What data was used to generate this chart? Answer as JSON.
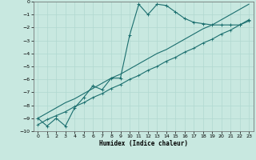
{
  "xlabel": "Humidex (Indice chaleur)",
  "ylabel": "",
  "bg_color": "#c8e8e0",
  "grid_color": "#b0d8d0",
  "line_color": "#1a6e6e",
  "xlim": [
    -0.5,
    23.5
  ],
  "ylim": [
    -10,
    0
  ],
  "xticks": [
    0,
    1,
    2,
    3,
    4,
    5,
    6,
    7,
    8,
    9,
    10,
    11,
    12,
    13,
    14,
    15,
    16,
    17,
    18,
    19,
    20,
    21,
    22,
    23
  ],
  "yticks": [
    0,
    -1,
    -2,
    -3,
    -4,
    -5,
    -6,
    -7,
    -8,
    -9,
    -10
  ],
  "curve_jagged_x": [
    0,
    1,
    2,
    3,
    4,
    5,
    6,
    7,
    8,
    9,
    10,
    11,
    12,
    13,
    14,
    15,
    16,
    17,
    18,
    19,
    20,
    21,
    22,
    23
  ],
  "curve_jagged_y": [
    -9.0,
    -9.6,
    -9.0,
    -9.6,
    -8.2,
    -7.4,
    -6.5,
    -6.8,
    -5.9,
    -5.9,
    -2.6,
    -0.2,
    -1.0,
    -0.2,
    -0.3,
    -0.8,
    -1.3,
    -1.6,
    -1.7,
    -1.8,
    -1.8,
    -1.8,
    -1.8,
    -1.4
  ],
  "curve_line1_x": [
    0,
    1,
    2,
    3,
    4,
    5,
    6,
    7,
    8,
    9,
    10,
    11,
    12,
    13,
    14,
    15,
    16,
    17,
    18,
    19,
    20,
    21,
    22,
    23
  ],
  "curve_line1_y": [
    -9.5,
    -9.1,
    -8.8,
    -8.5,
    -8.1,
    -7.8,
    -7.4,
    -7.1,
    -6.7,
    -6.4,
    -6.0,
    -5.7,
    -5.3,
    -5.0,
    -4.6,
    -4.3,
    -3.9,
    -3.6,
    -3.2,
    -2.9,
    -2.5,
    -2.2,
    -1.8,
    -1.5
  ],
  "curve_line2_x": [
    0,
    1,
    2,
    3,
    4,
    5,
    6,
    7,
    8,
    9,
    10,
    11,
    12,
    13,
    14,
    15,
    16,
    17,
    18,
    19,
    20,
    21,
    22,
    23
  ],
  "curve_line2_y": [
    -9.0,
    -8.6,
    -8.2,
    -7.8,
    -7.5,
    -7.1,
    -6.7,
    -6.3,
    -5.9,
    -5.6,
    -5.2,
    -4.8,
    -4.4,
    -4.0,
    -3.7,
    -3.3,
    -2.9,
    -2.5,
    -2.1,
    -1.8,
    -1.4,
    -1.0,
    -0.6,
    -0.2
  ]
}
